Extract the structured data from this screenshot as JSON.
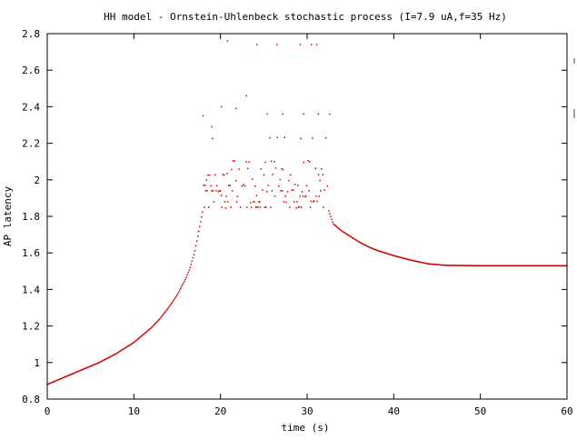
{
  "chart_data": {
    "type": "scatter",
    "title": "HH model - Ornstein-Uhlenbeck stochastic process (I=7.9 uA,f=35 Hz)",
    "xlabel": "time (s)",
    "ylabel": "AP latency",
    "xlim": [
      0,
      60
    ],
    "ylim": [
      0.8,
      2.8
    ],
    "xticks": [
      0,
      10,
      20,
      30,
      40,
      50,
      60
    ],
    "yticks": [
      0.8,
      1,
      1.2,
      1.4,
      1.6,
      1.8,
      2,
      2.2,
      2.4,
      2.6,
      2.8
    ],
    "xtick_labels": [
      "0",
      "10",
      "20",
      "30",
      "40",
      "50",
      "60"
    ],
    "ytick_labels": [
      "0.8",
      "1",
      "1.2",
      "1.4",
      "1.6",
      "1.8",
      "2",
      "2.2",
      "2.4",
      "2.6",
      "2.8"
    ],
    "grid": false,
    "legend": "none",
    "series": [
      {
        "color": "#cc0000",
        "marker": "dot",
        "segments": [
          {
            "phase": "rising",
            "x": [
              0,
              2,
              4,
              6,
              8,
              10,
              11,
              12,
              13,
              14,
              15,
              16,
              16.5,
              17,
              17.5,
              18
            ],
            "y": [
              0.88,
              0.92,
              0.96,
              1.0,
              1.05,
              1.11,
              1.15,
              1.19,
              1.24,
              1.3,
              1.37,
              1.46,
              1.52,
              1.6,
              1.72,
              1.84
            ]
          },
          {
            "phase": "irregular firing",
            "x_range": [
              18,
              32.5
            ],
            "y_levels": [
              1.85,
              1.88,
              1.91,
              1.94,
              1.97,
              2.0,
              2.03,
              2.06,
              2.1,
              2.23
            ],
            "outliers": [
              {
                "x": [
                  18,
                  19
                ],
                "y": [
                  2.35,
                  2.29
                ]
              },
              {
                "x": [
                  20.1,
                  21.8,
                  23.0,
                  25.4,
                  27.2,
                  29.6,
                  31.3,
                  32.6
                ],
                "y": [
                  2.4,
                  2.39,
                  2.46,
                  2.36,
                  2.36,
                  2.36,
                  2.36,
                  2.36
                ]
              },
              {
                "x": [
                  20.8,
                  24.2,
                  26.5,
                  29.2,
                  30.5,
                  31.1
                ],
                "y": [
                  2.76,
                  2.74,
                  2.74,
                  2.74,
                  2.74,
                  2.74
                ]
              }
            ]
          },
          {
            "phase": "relaxation",
            "x": [
              32.5,
              33,
              34,
              35,
              36,
              37,
              38,
              40,
              42,
              44,
              46,
              50,
              55,
              60
            ],
            "y": [
              1.83,
              1.76,
              1.72,
              1.69,
              1.66,
              1.635,
              1.615,
              1.585,
              1.56,
              1.54,
              1.532,
              1.53,
              1.53,
              1.53
            ]
          }
        ]
      }
    ]
  }
}
